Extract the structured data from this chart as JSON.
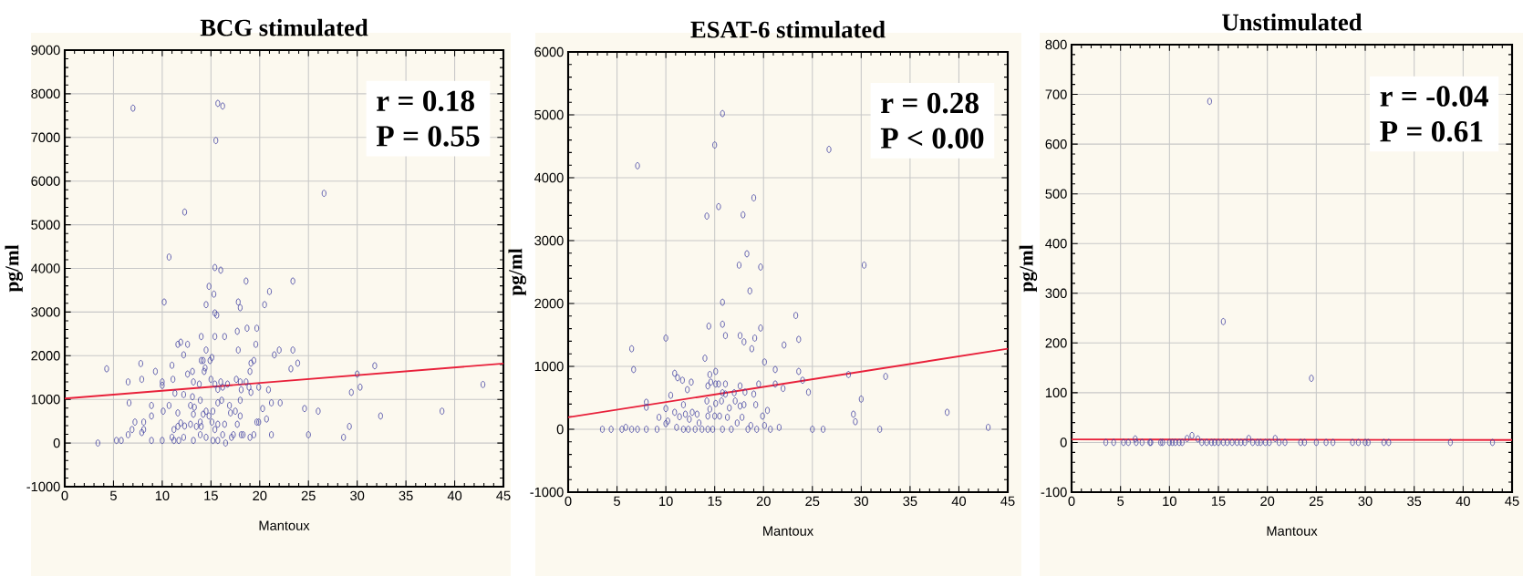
{
  "chart_data": [
    {
      "type": "scatter",
      "title": "BCG stimulated",
      "xlabel": "Mantoux",
      "ylabel": "pg/ml",
      "annotations": [
        "r = 0.18",
        "P = 0.55"
      ],
      "xlim": [
        0,
        45
      ],
      "xticks": [
        0,
        5,
        10,
        15,
        20,
        25,
        30,
        35,
        40,
        45
      ],
      "ylim": [
        -1000,
        9000
      ],
      "yticks": [
        -1000,
        0,
        1000,
        2000,
        3000,
        4000,
        5000,
        6000,
        7000,
        8000,
        9000
      ],
      "grid": true,
      "marker": "circle",
      "series": [
        {
          "type": "scatter",
          "color": "#3c3ca0",
          "x": [
            3.4,
            4.3,
            5.3,
            5.8,
            6.5,
            6.5,
            6.6,
            6.9,
            7.0,
            7.2,
            7.8,
            7.9,
            7.9,
            8.1,
            8.1,
            8.9,
            8.9,
            8.9,
            9.3,
            10.0,
            10.0,
            10.0,
            10.1,
            10.2,
            10.7,
            10.7,
            11.0,
            11.0,
            11.1,
            11.2,
            11.2,
            11.3,
            11.6,
            11.6,
            11.6,
            11.7,
            11.9,
            11.9,
            12.2,
            12.2,
            12.2,
            12.3,
            12.3,
            12.6,
            12.6,
            12.9,
            12.9,
            13.1,
            13.1,
            13.2,
            13.2,
            13.2,
            13.3,
            13.5,
            13.8,
            13.9,
            13.9,
            13.9,
            14.0,
            14.0,
            14.0,
            14.2,
            14.2,
            14.3,
            14.4,
            14.5,
            14.5,
            14.5,
            14.5,
            14.8,
            14.8,
            14.9,
            15.0,
            15.1,
            15.1,
            15.2,
            15.2,
            15.3,
            15.4,
            15.4,
            15.4,
            15.4,
            15.4,
            15.5,
            15.7,
            15.6,
            15.7,
            15.7,
            15.7,
            15.7,
            16.0,
            16.0,
            16.1,
            16.2,
            16.2,
            16.2,
            16.4,
            16.4,
            16.5,
            16.7,
            16.9,
            17.0,
            17.1,
            17.3,
            17.5,
            17.6,
            17.7,
            17.7,
            17.8,
            17.8,
            18.0,
            18.0,
            18.0,
            18.0,
            18.1,
            18.1,
            18.3,
            18.6,
            18.6,
            18.7,
            18.9,
            19.0,
            19.0,
            19.1,
            19.1,
            19.4,
            19.4,
            19.6,
            19.7,
            19.7,
            19.9,
            19.9,
            20.3,
            20.5,
            20.7,
            20.9,
            21.0,
            21.2,
            21.2,
            21.5,
            22.0,
            22.1,
            23.2,
            23.4,
            23.4,
            23.9,
            24.6,
            25.0,
            26.0,
            26.6,
            28.6,
            29.2,
            29.4,
            30.0,
            30.3,
            31.8,
            32.4,
            38.7,
            42.9
          ],
          "values": [
            0,
            1700,
            60,
            60,
            190,
            1400,
            920,
            310,
            7670,
            480,
            1820,
            1460,
            240,
            480,
            310,
            860,
            620,
            60,
            1640,
            1400,
            1320,
            60,
            730,
            3230,
            860,
            4260,
            1780,
            130,
            1460,
            310,
            60,
            1140,
            2260,
            690,
            380,
            60,
            2310,
            460,
            2020,
            1110,
            130,
            5290,
            390,
            2260,
            1580,
            860,
            430,
            1060,
            1640,
            1400,
            660,
            60,
            820,
            380,
            1350,
            980,
            480,
            190,
            2440,
            1890,
            380,
            1890,
            660,
            1640,
            1720,
            3170,
            2130,
            730,
            130,
            3590,
            620,
            1890,
            1460,
            1960,
            480,
            730,
            60,
            3410,
            4020,
            2440,
            2980,
            1350,
            310,
            6930,
            7780,
            2930,
            1230,
            920,
            430,
            60,
            3960,
            1400,
            980,
            190,
            7720,
            1280,
            2440,
            430,
            0,
            1350,
            860,
            690,
            130,
            190,
            730,
            1460,
            2560,
            430,
            3230,
            2130,
            3100,
            980,
            620,
            1400,
            1220,
            190,
            190,
            3710,
            1400,
            2630,
            1280,
            1640,
            130,
            1830,
            1160,
            1890,
            190,
            2260,
            480,
            2630,
            1280,
            480,
            790,
            3170,
            550,
            1220,
            3470,
            920,
            190,
            2020,
            2130,
            920,
            1700,
            3710,
            2130,
            1830,
            790,
            190,
            730,
            5720,
            130,
            380,
            1160,
            1580,
            1280,
            1770,
            620,
            730,
            1340
          ]
        },
        {
          "type": "line",
          "color": "#e8203a",
          "marker": "none",
          "x": [
            0,
            45
          ],
          "values": [
            1020,
            1820
          ]
        }
      ]
    },
    {
      "type": "scatter",
      "title": "ESAT-6 stimulated",
      "xlabel": "Mantoux",
      "ylabel": "pg/ml",
      "annotations": [
        "r = 0.28",
        "P < 0.00"
      ],
      "xlim": [
        0,
        45
      ],
      "xticks": [
        0,
        5,
        10,
        15,
        20,
        25,
        30,
        35,
        40,
        45
      ],
      "ylim": [
        -1000,
        6000
      ],
      "yticks": [
        -1000,
        0,
        1000,
        2000,
        3000,
        4000,
        5000,
        6000
      ],
      "grid": true,
      "marker": "circle",
      "series": [
        {
          "type": "scatter",
          "color": "#3c3ca0",
          "x": [
            3.5,
            4.4,
            5.5,
            5.9,
            6.5,
            6.5,
            6.7,
            7.1,
            7.1,
            8.0,
            8.0,
            8.0,
            9.1,
            9.3,
            10.0,
            10.0,
            10.0,
            10.2,
            10.5,
            10.9,
            10.9,
            11.1,
            11.2,
            11.4,
            11.7,
            11.8,
            11.8,
            12.0,
            12.2,
            12.3,
            12.4,
            12.6,
            12.7,
            13.0,
            13.2,
            13.4,
            13.7,
            14.0,
            14.2,
            14.2,
            14.3,
            14.3,
            14.3,
            14.4,
            14.5,
            14.5,
            14.6,
            14.8,
            15.0,
            15.1,
            15.1,
            15.1,
            15.0,
            15.4,
            15.4,
            15.5,
            15.7,
            15.8,
            15.8,
            15.8,
            15.8,
            15.8,
            16.1,
            16.1,
            16.1,
            16.3,
            16.5,
            16.7,
            17.0,
            17.1,
            17.3,
            17.5,
            17.6,
            17.6,
            17.6,
            17.8,
            17.9,
            18.0,
            18.0,
            18.1,
            18.3,
            18.4,
            18.6,
            18.7,
            18.8,
            19.0,
            19.0,
            19.1,
            19.2,
            19.3,
            19.5,
            19.7,
            19.7,
            19.9,
            20.1,
            20.1,
            20.4,
            20.7,
            21.2,
            21.2,
            21.6,
            22.0,
            22.1,
            23.3,
            23.6,
            23.6,
            24.0,
            24.6,
            25.0,
            26.1,
            26.7,
            28.7,
            29.2,
            29.4,
            30.0,
            30.3,
            31.9,
            32.5,
            38.8,
            43.0
          ],
          "values": [
            0,
            0,
            0,
            30,
            0,
            1280,
            950,
            4190,
            0,
            0,
            430,
            350,
            0,
            190,
            1450,
            330,
            90,
            130,
            540,
            890,
            270,
            30,
            820,
            200,
            780,
            390,
            0,
            240,
            630,
            0,
            160,
            750,
            270,
            0,
            240,
            100,
            0,
            1130,
            3390,
            450,
            0,
            690,
            210,
            1640,
            870,
            320,
            750,
            0,
            4520,
            920,
            720,
            410,
            210,
            3540,
            720,
            210,
            450,
            5020,
            2020,
            1670,
            0,
            580,
            1490,
            720,
            560,
            190,
            340,
            0,
            580,
            450,
            100,
            2610,
            1490,
            690,
            370,
            190,
            3410,
            1390,
            390,
            590,
            2790,
            0,
            2200,
            60,
            1280,
            3680,
            560,
            1450,
            390,
            0,
            720,
            2580,
            1610,
            210,
            1070,
            60,
            300,
            0,
            950,
            720,
            30,
            650,
            1340,
            1810,
            1430,
            920,
            780,
            590,
            0,
            0,
            4450,
            870,
            240,
            120,
            480,
            2610,
            0,
            840,
            270,
            30
          ]
        },
        {
          "type": "line",
          "color": "#e8203a",
          "marker": "none",
          "x": [
            0,
            45
          ],
          "values": [
            190,
            1280
          ]
        }
      ]
    },
    {
      "type": "scatter",
      "title": "Unstimulated",
      "xlabel": "Mantoux",
      "ylabel": "pg/ml",
      "annotations": [
        "r = -0.04",
        "P = 0.61"
      ],
      "xlim": [
        0,
        45
      ],
      "xticks": [
        0,
        5,
        10,
        15,
        20,
        25,
        30,
        35,
        40,
        45
      ],
      "ylim": [
        -100,
        800
      ],
      "yticks": [
        -100,
        0,
        100,
        200,
        300,
        400,
        500,
        600,
        700,
        800
      ],
      "grid": true,
      "marker": "circle",
      "series": [
        {
          "type": "scatter",
          "color": "#3c3ca0",
          "x": [
            3.5,
            4.3,
            5.3,
            5.8,
            6.5,
            6.6,
            7.2,
            8.0,
            8.1,
            9.1,
            9.3,
            10.0,
            10.3,
            10.6,
            11.0,
            11.3,
            11.8,
            12.3,
            12.9,
            13.3,
            13.8,
            14.1,
            14.3,
            14.6,
            15.0,
            15.5,
            15.5,
            15.9,
            16.4,
            16.9,
            17.3,
            17.7,
            18.1,
            18.5,
            19.0,
            19.3,
            19.8,
            20.2,
            20.8,
            21.2,
            21.8,
            23.4,
            23.8,
            24.5,
            25.0,
            26.0,
            26.7,
            28.7,
            29.3,
            30.0,
            30.3,
            31.9,
            32.4,
            38.7,
            43.0
          ],
          "values": [
            0,
            0,
            0,
            0,
            7,
            0,
            0,
            0,
            0,
            0,
            0,
            0,
            0,
            0,
            0,
            0,
            8,
            14,
            7,
            0,
            0,
            686,
            0,
            0,
            0,
            243,
            0,
            0,
            0,
            0,
            0,
            0,
            8,
            0,
            0,
            0,
            0,
            0,
            8,
            0,
            0,
            0,
            0,
            129,
            0,
            0,
            0,
            0,
            0,
            0,
            0,
            0,
            0,
            0,
            0
          ]
        },
        {
          "type": "line",
          "color": "#e8203a",
          "marker": "none",
          "x": [
            0,
            45
          ],
          "values": [
            6,
            5
          ]
        }
      ]
    }
  ]
}
